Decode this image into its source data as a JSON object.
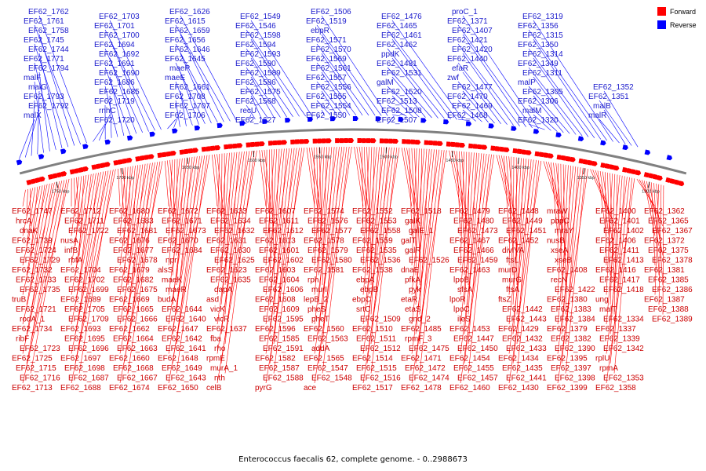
{
  "legend": {
    "forward_label": "Forward",
    "reverse_label": "Reverse",
    "forward_color": "#ff0000",
    "reverse_color": "#0000ff"
  },
  "caption": "Enterococcus faecalis 62, complete genome. - 0..2988673",
  "scale_labels": [
    "1750 kbp",
    "1700 kbp",
    "1650 kbp",
    "1600 kbp",
    "1550 kbp",
    "1500 kbp",
    "1450 kbp",
    "1400 kbp",
    "1350 kbp",
    "1300 kbp"
  ],
  "reverse_genes": [
    "malX",
    "EF62_1792",
    "EF62_1793",
    "malG",
    "malF",
    "EF62_1794",
    "EF62_1771",
    "EF62_1744",
    "EF62_1745",
    "EF62_1758",
    "EF62_1761",
    "EF62_1762",
    "EF62_1720",
    "rnhC",
    "EF62_1719",
    "EF62_1685",
    "EF62_1686",
    "EF62_1690",
    "EF62_1691",
    "EF62_1692",
    "EF62_1694",
    "EF62_1700",
    "EF62_1701",
    "EF62_1703",
    "EF62_1706",
    "EF62_1707",
    "EF62_1708",
    "EF62_1661",
    "maeE",
    "maeP",
    "EF62_1645",
    "EF62_1646",
    "EF62_1656",
    "EF62_1659",
    "EF62_1615",
    "EF62_1626",
    "EF62_1627",
    "recU",
    "EF62_1568",
    "EF62_1575",
    "EF62_1586",
    "EF62_1589",
    "EF62_1590",
    "EF62_1593",
    "EF62_1594",
    "EF62_1598",
    "EF62_1546",
    "EF62_1549",
    "EF62_1550",
    "EF62_1554",
    "EF62_1555",
    "EF62_1556",
    "EF62_1557",
    "EF62_1561",
    "EF62_1569",
    "EF62_1570",
    "EF62_1571",
    "ebpR",
    "EF62_1519",
    "EF62_1506",
    "EF62_1507",
    "EF62_1508",
    "EF62_1513",
    "EF62_1520",
    "galM",
    "EF62_1531",
    "EF62_1481",
    "ppdK",
    "EF62_1462",
    "EF62_1461",
    "EF62_1465",
    "EF62_1476",
    "EF62_1468",
    "EF62_1469",
    "EF62_1470",
    "EF62_1477",
    "zwf",
    "efaR",
    "EF62_1440",
    "EF62_1420",
    "EF62_1421",
    "EF62_1407",
    "EF62_1371",
    "proC_1",
    "EF62_1320",
    "malM",
    "EF62_1306",
    "EF62_1305",
    "malP",
    "EF62_1311",
    "EF62_1349",
    "EF62_1314",
    "EF62_1350",
    "EF62_1315",
    "EF62_1356",
    "EF62_1319",
    "malR",
    "malB",
    "EF62_1351",
    "EF62_1352"
  ],
  "forward_genes": [
    "EF62_1747",
    "hrcA",
    "dnaK",
    "EF62_1739",
    "EF62_1724",
    "EF62_1729",
    "EF62_1732",
    "EF62_1733",
    "EF62_1735",
    "truB",
    "EF62_1721",
    "rodA_1",
    "EF62_1734",
    "ribF",
    "EF62_1723",
    "EF62_1725",
    "EF62_1715",
    "EF62_1716",
    "EF62_1713",
    "EF62_1712",
    "EF62_1711",
    "EF62_1722",
    "nusA",
    "infB",
    "rbfA",
    "EF62_1704",
    "EF62_1702",
    "EF62_1699",
    "EF62_1689",
    "EF62_1705",
    "EF62_1709",
    "EF62_1693",
    "EF62_1695",
    "EF62_1696",
    "EF62_1697",
    "EF62_1698",
    "EF62_1687",
    "EF62_1688",
    "EF62_1680",
    "EF62_1683",
    "EF62_1681",
    "EF62_1676",
    "EF62_1677",
    "EF62_1678",
    "EF62_1679",
    "EF62_1682",
    "EF62_1675",
    "EF62_1669",
    "EF62_1665",
    "EF62_1666",
    "EF62_1662",
    "EF62_1664",
    "EF62_1663",
    "EF62_1660",
    "EF62_1668",
    "EF62_1667",
    "EF62_1674",
    "EF62_1672",
    "EF62_1671",
    "EF62_1673",
    "EF62_1670",
    "EF62_1684",
    "npr",
    "alsS",
    "maeK",
    "maeR",
    "budA",
    "EF62_1644",
    "EF62_1640",
    "EF62_1647",
    "EF62_1642",
    "EF62_1641",
    "EF62_1648",
    "EF62_1649",
    "EF62_1643",
    "EF62_1650",
    "EF62_1633",
    "EF62_1634",
    "EF62_1632",
    "EF62_1631",
    "EF62_1630",
    "EF62_1625",
    "EF62_1623",
    "EF62_1635",
    "dapA",
    "asd",
    "vicK",
    "vicR",
    "EF62_1637",
    "fba",
    "rho",
    "rpmE",
    "murA_1",
    "nth",
    "celB",
    "EF62_1607",
    "EF62_1611",
    "EF62_1612",
    "EF62_1613",
    "EF62_1601",
    "EF62_1602",
    "EF62_1603",
    "EF62_1604",
    "EF62_1606",
    "EF62_1608",
    "EF62_1609",
    "EF62_1595",
    "EF62_1596",
    "EF62_1585",
    "EF62_1591",
    "EF62_1582",
    "EF62_1587",
    "EF62_1588",
    "pyrG",
    "EF62_1574",
    "EF62_1576",
    "EF62_1577",
    "EF62_1578",
    "EF62_1579",
    "EF62_1580",
    "EF62_1581",
    "rph",
    "murI",
    "lepB_2",
    "pheS",
    "pheT",
    "EF62_1560",
    "EF62_1563",
    "addA",
    "EF62_1565",
    "EF62_1547",
    "EF62_1548",
    "ace",
    "EF62_1552",
    "EF62_1553",
    "EF62_1558",
    "EF62_1559",
    "EF62_1535",
    "EF62_1536",
    "EF62_1538",
    "ebpA",
    "ebpB",
    "ebpC",
    "srtC",
    "EF62_1509",
    "EF62_1510",
    "EF62_1511",
    "EF62_1512",
    "EF62_1514",
    "EF62_1515",
    "EF62_1516",
    "EF62_1517",
    "EF62_1518",
    "galK",
    "galE_1",
    "galT",
    "galR",
    "EF62_1526",
    "dnaE",
    "pfkA",
    "pyk",
    "etaR",
    "etaS",
    "gnd_2",
    "EF62_1485",
    "rpmF_3",
    "EF62_1475",
    "EF62_1471",
    "EF62_1472",
    "EF62_1474",
    "EF62_1478",
    "EF62_1479",
    "EF62_1480",
    "EF62_1473",
    "EF62_1467",
    "EF62_1466",
    "EF62_1459",
    "EF62_1463",
    "lpoB",
    "sfsA",
    "lpoR",
    "lpoC",
    "ileS",
    "EF62_1453",
    "EF62_1447",
    "EF62_1450",
    "EF62_1454",
    "EF62_1455",
    "EF62_1457",
    "EF62_1460",
    "EF62_1448",
    "EF62_1449",
    "EF62_1451",
    "EF62_1452",
    "divIVA",
    "ftsL",
    "murD",
    "murG",
    "ftsA",
    "ftsZ",
    "EF62_1442",
    "EF62_1443",
    "EF62_1429",
    "EF62_1432",
    "EF62_1433",
    "EF62_1434",
    "EF62_1435",
    "EF62_1441",
    "EF62_1430",
    "mraW",
    "pbpC",
    "mraY",
    "nusB",
    "xseA",
    "xseB",
    "EF62_1408",
    "recN",
    "EF62_1422",
    "EF62_1380",
    "EF62_1383",
    "EF62_1384",
    "EF62_1379",
    "EF62_1382",
    "EF62_1390",
    "EF62_1395",
    "EF62_1397",
    "EF62_1398",
    "EF62_1399",
    "EF62_1400",
    "EF62_1401",
    "EF62_1402",
    "EF62_1406",
    "EF62_1411",
    "EF62_1413",
    "EF62_1416",
    "EF62_1417",
    "EF62_1418",
    "ung",
    "malT",
    "EF62_1334",
    "EF62_1337",
    "EF62_1339",
    "EF62_1342",
    "rplU",
    "rpmA",
    "EF62_1353",
    "EF62_1358",
    "EF62_1362",
    "EF62_1365",
    "EF62_1367",
    "EF62_1372",
    "EF62_1375",
    "EF62_1378",
    "EF62_1381",
    "EF62_1385",
    "EF62_1386",
    "EF62_1387",
    "EF62_1388",
    "EF62_1389"
  ]
}
